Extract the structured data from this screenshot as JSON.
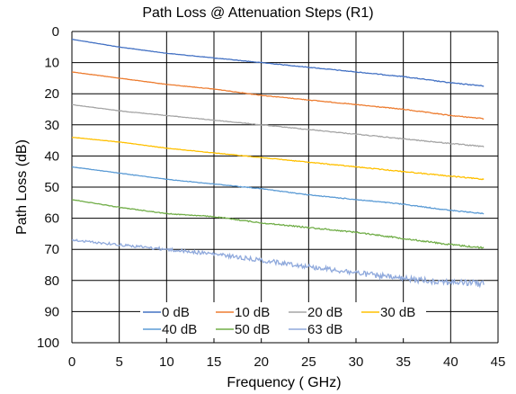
{
  "chart_data": {
    "type": "line",
    "title": "Path Loss @ Attenuation Steps (R1)",
    "xlabel": "Frequency ( GHz)",
    "ylabel": "Path Loss (dB)",
    "xlim": [
      0,
      45
    ],
    "ylim": [
      0,
      100
    ],
    "y_reversed": true,
    "x_ticks": [
      0,
      5,
      10,
      15,
      20,
      25,
      30,
      35,
      40,
      45
    ],
    "y_ticks": [
      0,
      10,
      20,
      30,
      40,
      50,
      60,
      70,
      80,
      90,
      100
    ],
    "grid": true,
    "legend_position": "bottom-inside",
    "x": [
      0,
      5,
      10,
      15,
      20,
      25,
      30,
      35,
      40,
      43.5
    ],
    "series": [
      {
        "name": "0 dB",
        "color": "#4472c4",
        "noise": 0.1,
        "values": [
          2.5,
          5.0,
          7.0,
          8.5,
          10.0,
          11.5,
          13.0,
          14.5,
          16.5,
          17.5
        ]
      },
      {
        "name": "10 dB",
        "color": "#ed7d31",
        "noise": 0.1,
        "values": [
          13.0,
          15.0,
          17.0,
          18.5,
          20.5,
          22.0,
          23.5,
          25.0,
          27.0,
          28.0
        ]
      },
      {
        "name": "20 dB",
        "color": "#a5a5a5",
        "noise": 0.12,
        "values": [
          23.5,
          25.5,
          27.0,
          28.5,
          30.0,
          31.5,
          33.0,
          34.5,
          36.0,
          37.0
        ]
      },
      {
        "name": "30 dB",
        "color": "#ffc000",
        "noise": 0.12,
        "values": [
          34.0,
          35.5,
          37.5,
          39.0,
          40.5,
          42.0,
          43.5,
          45.0,
          46.5,
          47.5
        ]
      },
      {
        "name": "40 dB",
        "color": "#5b9bd5",
        "noise": 0.12,
        "values": [
          43.5,
          45.5,
          47.5,
          49.0,
          50.5,
          52.5,
          54.0,
          55.5,
          57.5,
          58.5
        ]
      },
      {
        "name": "50 dB",
        "color": "#70ad47",
        "noise": 0.2,
        "values": [
          54.0,
          56.5,
          58.5,
          59.5,
          61.5,
          63.0,
          64.5,
          66.5,
          68.5,
          69.5
        ]
      },
      {
        "name": "63 dB",
        "color": "#8fa9dc",
        "noise": 0.8,
        "values": [
          67.0,
          68.5,
          70.0,
          71.5,
          73.5,
          75.5,
          77.5,
          79.5,
          80.5,
          81.0
        ]
      }
    ]
  }
}
